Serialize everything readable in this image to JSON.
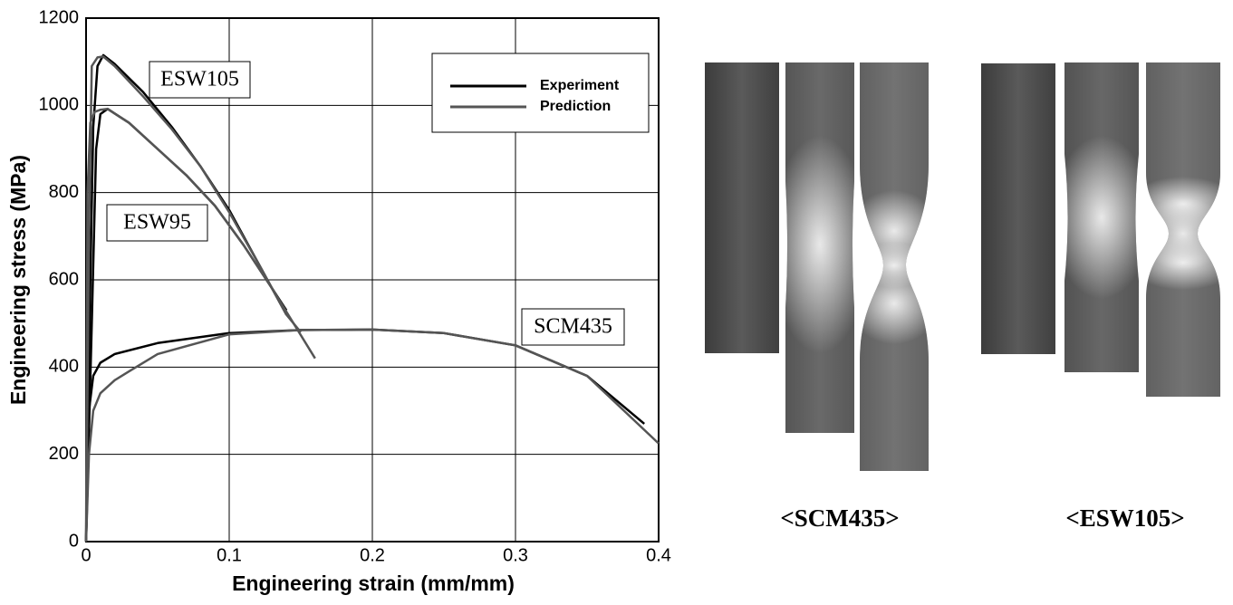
{
  "chart_data": {
    "type": "line",
    "xlabel": "Engineering strain (mm/mm)",
    "ylabel": "Engineering stress (MPa)",
    "xlim": [
      0,
      0.4
    ],
    "xticks": [
      0,
      0.1,
      0.2,
      0.3,
      0.4
    ],
    "ylim": [
      0,
      1200
    ],
    "yticks": [
      0,
      200,
      400,
      600,
      800,
      1000,
      1200
    ],
    "grid": true,
    "legend": "upper right",
    "annotations": [
      "ESW105",
      "ESW95",
      "SCM435"
    ],
    "series": [
      {
        "name": "Experiment",
        "color": "#000000",
        "curves": [
          {
            "x": [
              0,
              0.003,
              0.005,
              0.008,
              0.012,
              0.02,
              0.04,
              0.06,
              0.08,
              0.1,
              0.12,
              0.14
            ],
            "values": [
              0,
              600,
              950,
              1090,
              1115,
              1095,
              1030,
              950,
              860,
              760,
              640,
              520
            ]
          },
          {
            "x": [
              0,
              0.004,
              0.007,
              0.01,
              0.015,
              0.03,
              0.05,
              0.07,
              0.09,
              0.11,
              0.13,
              0.14
            ],
            "values": [
              0,
              500,
              900,
              980,
              992,
              960,
              900,
              840,
              770,
              680,
              580,
              530
            ]
          },
          {
            "x": [
              0,
              0.002,
              0.005,
              0.01,
              0.02,
              0.05,
              0.1,
              0.15,
              0.2,
              0.25,
              0.3,
              0.35,
              0.39
            ],
            "values": [
              0,
              300,
              380,
              410,
              430,
              455,
              478,
              485,
              486,
              478,
              450,
              380,
              270
            ]
          }
        ]
      },
      {
        "name": "Prediction",
        "color": "#555555",
        "curves": [
          {
            "x": [
              0,
              0.002,
              0.004,
              0.008,
              0.012,
              0.02,
              0.04,
              0.06,
              0.08,
              0.1,
              0.12,
              0.14,
              0.15
            ],
            "values": [
              0,
              700,
              1090,
              1110,
              1112,
              1090,
              1020,
              945,
              860,
              755,
              640,
              520,
              480
            ]
          },
          {
            "x": [
              0,
              0.001,
              0.003,
              0.006,
              0.01,
              0.015,
              0.03,
              0.05,
              0.07,
              0.09,
              0.11,
              0.13,
              0.16
            ],
            "values": [
              0,
              800,
              960,
              985,
              990,
              992,
              960,
              900,
              840,
              770,
              680,
              580,
              420
            ]
          },
          {
            "x": [
              0,
              0.002,
              0.005,
              0.01,
              0.02,
              0.03,
              0.05,
              0.1,
              0.15,
              0.2,
              0.25,
              0.3,
              0.35,
              0.4
            ],
            "values": [
              0,
              200,
              300,
              340,
              370,
              390,
              430,
              475,
              485,
              486,
              478,
              450,
              380,
              225
            ]
          }
        ]
      }
    ]
  },
  "figure_labels": [
    "<SCM435>",
    "<ESW105>"
  ]
}
